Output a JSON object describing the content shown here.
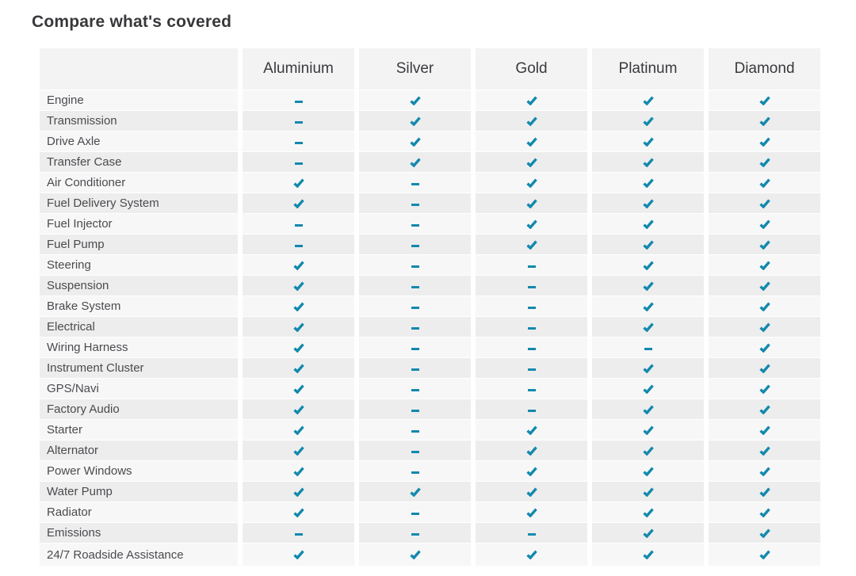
{
  "page": {
    "title": "Compare what's covered"
  },
  "table": {
    "accent_color": "#1289ad",
    "icons": {
      "covered": "check-icon",
      "not_covered": "dash-icon"
    },
    "plans": [
      "Aluminium",
      "Silver",
      "Gold",
      "Platinum",
      "Diamond"
    ],
    "rows": [
      {
        "label": "Engine",
        "coverage": [
          false,
          true,
          true,
          true,
          true
        ]
      },
      {
        "label": "Transmission",
        "coverage": [
          false,
          true,
          true,
          true,
          true
        ]
      },
      {
        "label": "Drive Axle",
        "coverage": [
          false,
          true,
          true,
          true,
          true
        ]
      },
      {
        "label": "Transfer Case",
        "coverage": [
          false,
          true,
          true,
          true,
          true
        ]
      },
      {
        "label": "Air Conditioner",
        "coverage": [
          true,
          false,
          true,
          true,
          true
        ]
      },
      {
        "label": "Fuel Delivery System",
        "coverage": [
          true,
          false,
          true,
          true,
          true
        ]
      },
      {
        "label": "Fuel Injector",
        "coverage": [
          false,
          false,
          true,
          true,
          true
        ]
      },
      {
        "label": "Fuel Pump",
        "coverage": [
          false,
          false,
          true,
          true,
          true
        ]
      },
      {
        "label": "Steering",
        "coverage": [
          true,
          false,
          false,
          true,
          true
        ]
      },
      {
        "label": "Suspension",
        "coverage": [
          true,
          false,
          false,
          true,
          true
        ]
      },
      {
        "label": "Brake System",
        "coverage": [
          true,
          false,
          false,
          true,
          true
        ]
      },
      {
        "label": "Electrical",
        "coverage": [
          true,
          false,
          false,
          true,
          true
        ]
      },
      {
        "label": "Wiring Harness",
        "coverage": [
          true,
          false,
          false,
          false,
          true
        ]
      },
      {
        "label": "Instrument Cluster",
        "coverage": [
          true,
          false,
          false,
          true,
          true
        ]
      },
      {
        "label": "GPS/Navi",
        "coverage": [
          true,
          false,
          false,
          true,
          true
        ]
      },
      {
        "label": "Factory Audio",
        "coverage": [
          true,
          false,
          false,
          true,
          true
        ]
      },
      {
        "label": "Starter",
        "coverage": [
          true,
          false,
          true,
          true,
          true
        ]
      },
      {
        "label": "Alternator",
        "coverage": [
          true,
          false,
          true,
          true,
          true
        ]
      },
      {
        "label": "Power Windows",
        "coverage": [
          true,
          false,
          true,
          true,
          true
        ]
      },
      {
        "label": "Water Pump",
        "coverage": [
          true,
          true,
          true,
          true,
          true
        ]
      },
      {
        "label": "Radiator",
        "coverage": [
          true,
          false,
          true,
          true,
          true
        ]
      },
      {
        "label": "Emissions",
        "coverage": [
          false,
          false,
          false,
          true,
          true
        ]
      },
      {
        "label": "24/7 Roadside Assistance",
        "coverage": [
          true,
          true,
          true,
          true,
          true
        ]
      }
    ]
  }
}
